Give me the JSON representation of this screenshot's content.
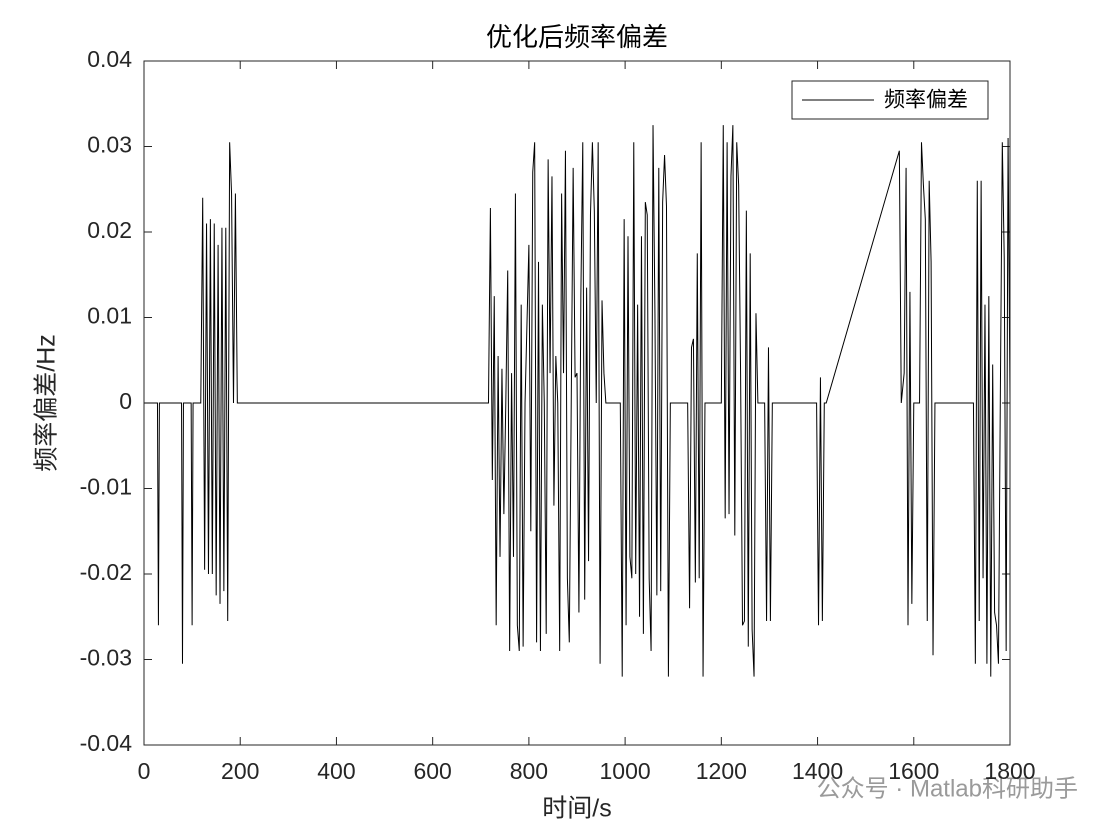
{
  "chart_data": {
    "type": "line",
    "title": "优化后频率偏差",
    "xlabel": "时间/s",
    "ylabel": "频率偏差/Hz",
    "annotation": "公众号 · Matlab科研助手",
    "legend": "northeast",
    "xlim": [
      0,
      1800
    ],
    "ylim": [
      -0.04,
      0.04
    ],
    "xticks": [
      0,
      200,
      400,
      600,
      800,
      1000,
      1200,
      1400,
      1600,
      1800
    ],
    "yticks": [
      -0.04,
      -0.03,
      -0.02,
      -0.01,
      0,
      0.01,
      0.02,
      0.03,
      0.04
    ],
    "series": [
      {
        "name": "频率偏差",
        "color": "#000000",
        "x": [
          0,
          28,
          30,
          32,
          78,
          80,
          82,
          98,
          100,
          102,
          118,
          122,
          126,
          130,
          134,
          138,
          142,
          146,
          150,
          154,
          158,
          162,
          166,
          170,
          174,
          178,
          182,
          186,
          190,
          194,
          716,
          720,
          724,
          728,
          732,
          736,
          740,
          744,
          748,
          752,
          756,
          760,
          764,
          768,
          772,
          776,
          780,
          784,
          788,
          792,
          800,
          804,
          808,
          812,
          816,
          820,
          824,
          828,
          832,
          836,
          840,
          844,
          848,
          852,
          856,
          860,
          864,
          868,
          872,
          876,
          880,
          884,
          888,
          892,
          896,
          900,
          904,
          908,
          912,
          916,
          920,
          924,
          928,
          932,
          936,
          940,
          944,
          948,
          952,
          956,
          960,
          990,
          994,
          998,
          1002,
          1006,
          1010,
          1014,
          1018,
          1022,
          1026,
          1030,
          1034,
          1038,
          1042,
          1046,
          1050,
          1054,
          1058,
          1062,
          1066,
          1070,
          1074,
          1078,
          1082,
          1086,
          1090,
          1094,
          1130,
          1134,
          1138,
          1142,
          1146,
          1150,
          1154,
          1158,
          1162,
          1166,
          1200,
          1204,
          1208,
          1212,
          1216,
          1220,
          1224,
          1228,
          1232,
          1236,
          1240,
          1244,
          1248,
          1252,
          1256,
          1260,
          1264,
          1268,
          1272,
          1276,
          1290,
          1294,
          1298,
          1302,
          1306,
          1398,
          1402,
          1406,
          1410,
          1414,
          1418,
          1570,
          1574,
          1580,
          1584,
          1588,
          1592,
          1596,
          1600,
          1612,
          1616,
          1620,
          1624,
          1628,
          1632,
          1636,
          1640,
          1644,
          1724,
          1728,
          1732,
          1736,
          1740,
          1744,
          1748,
          1752,
          1756,
          1760,
          1764,
          1768,
          1772,
          1776,
          1780,
          1784,
          1788,
          1792,
          1796,
          1800
        ],
        "values": [
          0,
          0,
          -0.026,
          0,
          0,
          -0.0305,
          0,
          0,
          -0.026,
          0,
          0,
          0.024,
          -0.0195,
          0.021,
          -0.02,
          0.0215,
          -0.02,
          0.021,
          -0.0225,
          0.0185,
          -0.0235,
          0.0205,
          -0.022,
          0.0205,
          -0.0255,
          0.0305,
          0.0245,
          0,
          0.0245,
          0,
          0,
          0.0228,
          -0.009,
          0.0125,
          -0.026,
          0.0055,
          -0.018,
          0.004,
          -0.013,
          0,
          0.0155,
          -0.029,
          0.0035,
          -0.018,
          0.0245,
          -0.026,
          -0.029,
          0.0115,
          -0.0285,
          0,
          0.0185,
          -0.015,
          0.027,
          0.0305,
          -0.028,
          0.0165,
          -0.029,
          0.0115,
          0,
          -0.027,
          0.0285,
          0.0035,
          0.0265,
          -0.012,
          0.0055,
          0,
          -0.029,
          0.0245,
          0.0035,
          0.0295,
          -0.0205,
          -0.028,
          0,
          0.0275,
          0.003,
          0.0035,
          -0.0245,
          0.0125,
          0.0305,
          -0.023,
          0.0135,
          -0.0185,
          0.022,
          0.0305,
          0.0225,
          0,
          0.0305,
          -0.0305,
          0.012,
          0.0035,
          0,
          0,
          -0.032,
          0.0215,
          -0.026,
          0.0195,
          -0.018,
          -0.0205,
          0.0305,
          -0.02,
          0.0115,
          -0.025,
          0.0195,
          -0.027,
          0.0235,
          0.022,
          -0.0205,
          -0.029,
          0.0325,
          0.0105,
          -0.0225,
          0.0275,
          -0.022,
          0.0235,
          0.029,
          0.023,
          -0.032,
          0,
          0,
          -0.024,
          0.0065,
          0.0075,
          -0.021,
          0.0175,
          -0.0205,
          0.0305,
          -0.032,
          0,
          0,
          0.0325,
          -0.0135,
          0.0305,
          -0.013,
          0.0265,
          0.0325,
          -0.0155,
          0.0305,
          0.0255,
          0.0035,
          -0.026,
          -0.0255,
          0.0225,
          -0.0285,
          0.0175,
          -0.0265,
          -0.032,
          0.0105,
          0,
          0,
          -0.0255,
          0.0065,
          -0.0255,
          0,
          0,
          -0.026,
          0.003,
          -0.0255,
          0,
          0,
          0.0295,
          0,
          0.0035,
          0.0275,
          -0.026,
          0.013,
          -0.0235,
          0,
          0,
          0.0305,
          0.0255,
          0.0215,
          -0.0255,
          0.026,
          0.0165,
          -0.0295,
          0,
          0,
          -0.0305,
          0.026,
          -0.0255,
          0.026,
          -0.0205,
          0.0115,
          -0.0305,
          0.0125,
          -0.032,
          0.0045,
          -0.0245,
          -0.026,
          -0.0305,
          0.0015,
          0.0305,
          0.017,
          -0.029,
          0.031,
          0
        ]
      }
    ]
  }
}
